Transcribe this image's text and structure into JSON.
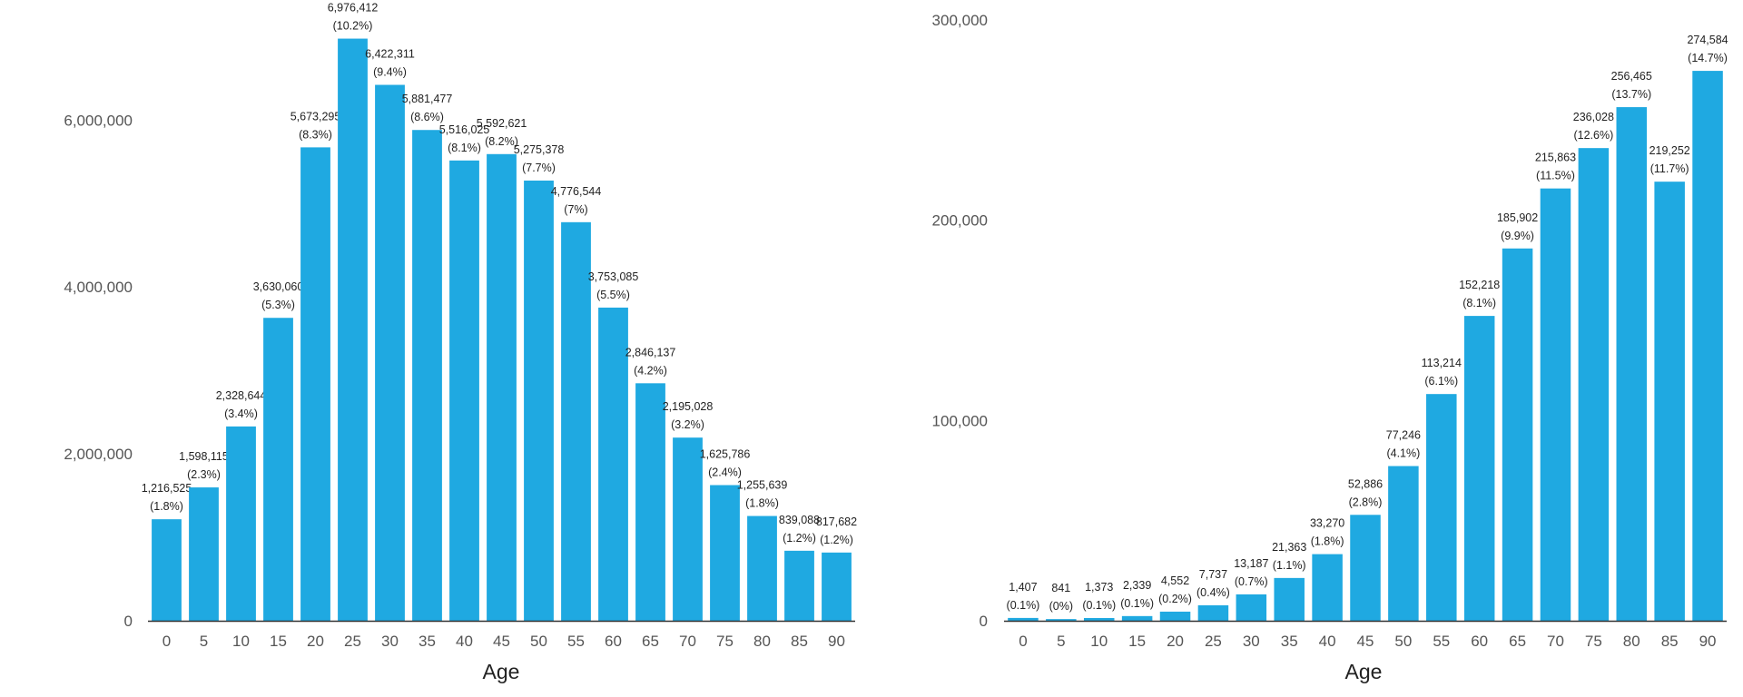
{
  "chart_data": [
    {
      "type": "bar",
      "xlabel": "Age",
      "ylabel": "",
      "title": "",
      "ylim": [
        0,
        7200000
      ],
      "yticks": [
        0,
        2000000,
        4000000,
        6000000
      ],
      "ytick_labels": [
        "0",
        "2,000,000",
        "4,000,000",
        "6,000,000"
      ],
      "color": "#1fa9e1",
      "grid": false,
      "categories": [
        "0",
        "5",
        "10",
        "15",
        "20",
        "25",
        "30",
        "35",
        "40",
        "45",
        "50",
        "55",
        "60",
        "65",
        "70",
        "75",
        "80",
        "85",
        "90"
      ],
      "values": [
        1216525,
        1598115,
        2328644,
        3630060,
        5673295,
        6976412,
        6422311,
        5881477,
        5516025,
        5592621,
        5275378,
        4776544,
        3753085,
        2846137,
        2195028,
        1625786,
        1255639,
        839088,
        817682
      ],
      "value_labels": [
        "1,216,525",
        "1,598,115",
        "2,328,644",
        "3,630,060",
        "5,673,295",
        "6,976,412",
        "6,422,311",
        "5,881,477",
        "5,516,025",
        "5,592,621",
        "5,275,378",
        "4,776,544",
        "3,753,085",
        "2,846,137",
        "2,195,028",
        "1,625,786",
        "1,255,639",
        "839,088",
        "817,682"
      ],
      "percent_labels": [
        "(1.8%)",
        "(2.3%)",
        "(3.4%)",
        "(5.3%)",
        "(8.3%)",
        "(10.2%)",
        "(9.4%)",
        "(8.6%)",
        "(8.1%)",
        "(8.2%)",
        "(7.7%)",
        "(7%)",
        "(5.5%)",
        "(4.2%)",
        "(3.2%)",
        "(2.4%)",
        "(1.8%)",
        "(1.2%)",
        "(1.2%)"
      ]
    },
    {
      "type": "bar",
      "xlabel": "Age",
      "ylabel": "",
      "title": "",
      "ylim": [
        0,
        300000
      ],
      "yticks": [
        0,
        100000,
        200000,
        300000
      ],
      "ytick_labels": [
        "0",
        "100,000",
        "200,000",
        "300,000"
      ],
      "color": "#1fa9e1",
      "grid": false,
      "categories": [
        "0",
        "5",
        "10",
        "15",
        "20",
        "25",
        "30",
        "35",
        "40",
        "45",
        "50",
        "55",
        "60",
        "65",
        "70",
        "75",
        "80",
        "85",
        "90"
      ],
      "values": [
        1407,
        841,
        1373,
        2339,
        4552,
        7737,
        13187,
        21363,
        33270,
        52886,
        77246,
        113214,
        152218,
        185902,
        215863,
        236028,
        256465,
        219252,
        274584
      ],
      "value_labels": [
        "1,407",
        "841",
        "1,373",
        "2,339",
        "4,552",
        "7,737",
        "13,187",
        "21,363",
        "33,270",
        "52,886",
        "77,246",
        "113,214",
        "152,218",
        "185,902",
        "215,863",
        "236,028",
        "256,465",
        "219,252",
        "274,584"
      ],
      "percent_labels": [
        "(0.1%)",
        "(0%)",
        "(0.1%)",
        "(0.1%)",
        "(0.2%)",
        "(0.4%)",
        "(0.7%)",
        "(1.1%)",
        "(1.8%)",
        "(2.8%)",
        "(4.1%)",
        "(6.1%)",
        "(8.1%)",
        "(9.9%)",
        "(11.5%)",
        "(12.6%)",
        "(13.7%)",
        "(11.7%)",
        "(14.7%)"
      ]
    }
  ]
}
